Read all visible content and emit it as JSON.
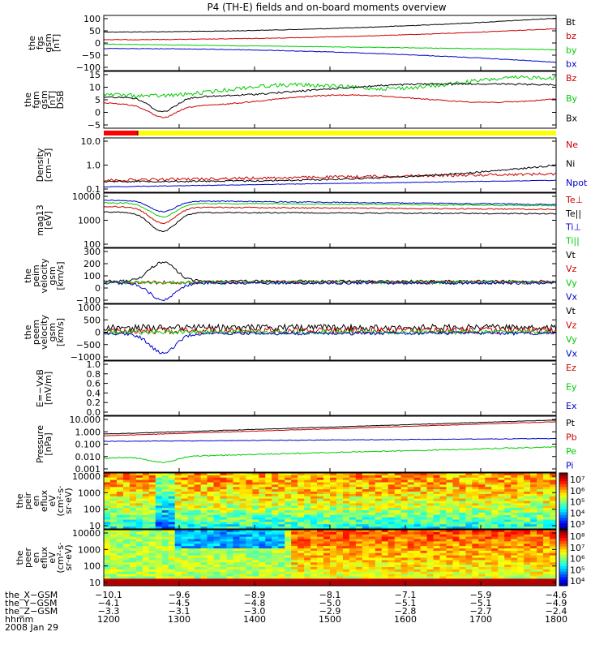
{
  "title": "P4 (TH-E) fields and on-board moments overview",
  "status_bar": {
    "colors": [
      "#ff0000",
      "#000000",
      "#ffff00"
    ]
  },
  "chart_data": [
    {
      "id": "fgs",
      "type": "line",
      "ylabel": [
        "the",
        "fgs",
        "gsm",
        "[nT]"
      ],
      "yticks": [
        "100",
        "50",
        "0",
        "−50",
        "−100"
      ],
      "series": [
        {
          "name": "Bt",
          "color": "#000000"
        },
        {
          "name": "bz",
          "color": "#cc0000"
        },
        {
          "name": "by",
          "color": "#00cc00"
        },
        {
          "name": "bx",
          "color": "#0000cc"
        }
      ]
    },
    {
      "id": "fgm",
      "type": "line",
      "ylabel": [
        "the",
        "fgm",
        "gsm",
        "[nT]",
        "DSB"
      ],
      "yticks": [
        "15",
        "10",
        "5",
        "0",
        "−5"
      ],
      "series": [
        {
          "name": "Bz",
          "color": "#cc0000"
        },
        {
          "name": "By",
          "color": "#00cc00"
        },
        {
          "name": "Bx",
          "color": "#000000"
        }
      ]
    },
    {
      "id": "density",
      "type": "line",
      "ylabel": [
        "Density",
        "[cm−3]"
      ],
      "yticks": [
        "10.0",
        "1.0",
        "0.1"
      ],
      "series": [
        {
          "name": "Ne",
          "color": "#cc0000"
        },
        {
          "name": "Ni",
          "color": "#000000"
        },
        {
          "name": "Npot",
          "color": "#0000cc"
        }
      ]
    },
    {
      "id": "temp",
      "type": "line",
      "ylabel": [
        "mag13",
        "[eV]"
      ],
      "yticks": [
        "10000",
        "1000",
        "100"
      ],
      "series": [
        {
          "name": "Te⊥",
          "color": "#cc0000"
        },
        {
          "name": "Te||",
          "color": "#000000"
        },
        {
          "name": "Ti⊥",
          "color": "#0000cc"
        },
        {
          "name": "Ti||",
          "color": "#00cc00"
        }
      ]
    },
    {
      "id": "peim",
      "type": "line",
      "ylabel": [
        "the",
        "peim",
        "velocity",
        "gsm",
        "[km/s]"
      ],
      "yticks": [
        "300",
        "200",
        "100",
        "0",
        "−100"
      ],
      "series": [
        {
          "name": "Vt",
          "color": "#000000"
        },
        {
          "name": "Vz",
          "color": "#cc0000"
        },
        {
          "name": "Vy",
          "color": "#00cc00"
        },
        {
          "name": "Vx",
          "color": "#0000cc"
        }
      ]
    },
    {
      "id": "peem",
      "type": "line",
      "ylabel": [
        "the",
        "peem",
        "velocity",
        "gsm",
        "[km/s]"
      ],
      "yticks": [
        "1000",
        "500",
        "0",
        "−500",
        "−1000"
      ],
      "series": [
        {
          "name": "Vt",
          "color": "#000000"
        },
        {
          "name": "Vz",
          "color": "#cc0000"
        },
        {
          "name": "Vy",
          "color": "#00cc00"
        },
        {
          "name": "Vx",
          "color": "#0000cc"
        }
      ]
    },
    {
      "id": "efield",
      "type": "line",
      "ylabel": [
        "E=−VxB",
        "[mV/m]"
      ],
      "yticks": [
        "1.0",
        "0.8",
        "0.6",
        "0.4",
        "0.2",
        "0.0"
      ],
      "series": [
        {
          "name": "Ez",
          "color": "#cc0000"
        },
        {
          "name": "Ey",
          "color": "#00cc00"
        },
        {
          "name": "Ex",
          "color": "#0000cc"
        }
      ]
    },
    {
      "id": "pressure",
      "type": "line",
      "ylabel": [
        "Pressure",
        "[nPa]"
      ],
      "yticks": [
        "10.000",
        "1.000",
        "0.100",
        "0.010",
        "0.001"
      ],
      "series": [
        {
          "name": "Pt",
          "color": "#000000"
        },
        {
          "name": "Pb",
          "color": "#cc0000"
        },
        {
          "name": "Pe",
          "color": "#00cc00"
        },
        {
          "name": "Pi",
          "color": "#0000cc"
        }
      ]
    },
    {
      "id": "peir",
      "type": "heatmap",
      "ylabel": [
        "the",
        "peir",
        "en",
        "eflux",
        "eV",
        "(cm²·s·",
        "sr·eV)"
      ],
      "yticks": [
        "10000",
        "1000",
        "100",
        "10"
      ],
      "colorbar_ticks": [
        "10⁷",
        "10⁶",
        "10⁵",
        "10⁴",
        "10³"
      ]
    },
    {
      "id": "peer",
      "type": "heatmap",
      "ylabel": [
        "the",
        "peer",
        "en",
        "eflux",
        "eV",
        "(cm²·s·",
        "sr·eV)"
      ],
      "yticks": [
        "10000",
        "1000",
        "100",
        "10"
      ],
      "colorbar_ticks": [
        "10⁸",
        "10⁷",
        "10⁶",
        "10⁵",
        "10⁴"
      ]
    }
  ],
  "x_axis": {
    "row_labels": [
      "the_X−GSM",
      "the_Y−GSM",
      "the_Z−GSM",
      "hhmm",
      "2008 Jan 29"
    ],
    "columns": [
      [
        "−10.1",
        "−4.1",
        "−3.3",
        "1200"
      ],
      [
        "−9.6",
        "−4.5",
        "−3.1",
        "1300"
      ],
      [
        "−8.9",
        "−4.8",
        "−3.0",
        "1400"
      ],
      [
        "−8.1",
        "−5.0",
        "−2.9",
        "1500"
      ],
      [
        "−7.1",
        "−5.1",
        "−2.8",
        "1600"
      ],
      [
        "−5.9",
        "−5.1",
        "−2.7",
        "1700"
      ],
      [
        "−4.6",
        "−4.9",
        "−2.4",
        "1800"
      ]
    ]
  }
}
